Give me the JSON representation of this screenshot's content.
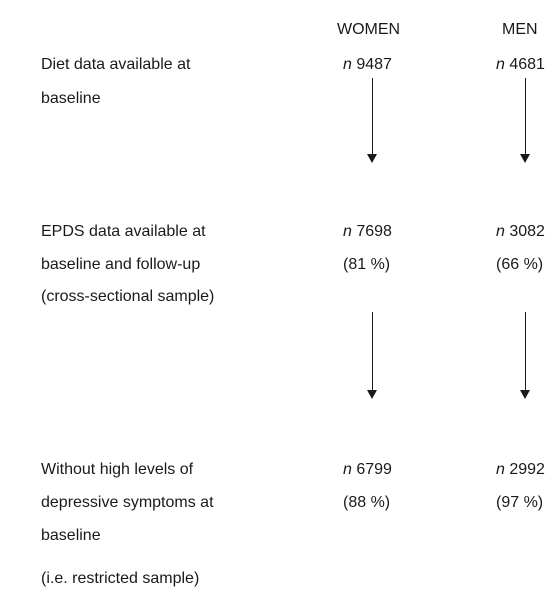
{
  "headers": {
    "women": "WOMEN",
    "men": "MEN"
  },
  "rows": [
    {
      "label_lines": [
        "Diet data available at",
        "baseline"
      ],
      "women": {
        "n_symbol": "n",
        "value": "9487",
        "pct": ""
      },
      "men": {
        "n_symbol": "n",
        "value": "4681",
        "pct": ""
      }
    },
    {
      "label_lines": [
        "EPDS data available at",
        "baseline and follow-up",
        "(cross-sectional sample)"
      ],
      "women": {
        "n_symbol": "n",
        "value": "7698",
        "pct": "(81 %)"
      },
      "men": {
        "n_symbol": "n",
        "value": "3082",
        "pct": "(66 %)"
      }
    },
    {
      "label_lines": [
        "Without high levels of",
        "depressive symptoms at",
        "baseline"
      ],
      "women": {
        "n_symbol": "n",
        "value": "6799",
        "pct": "(88 %)"
      },
      "men": {
        "n_symbol": "n",
        "value": "2992",
        "pct": "(97 %)"
      }
    }
  ],
  "footnote": "(i.e. restricted sample)"
}
